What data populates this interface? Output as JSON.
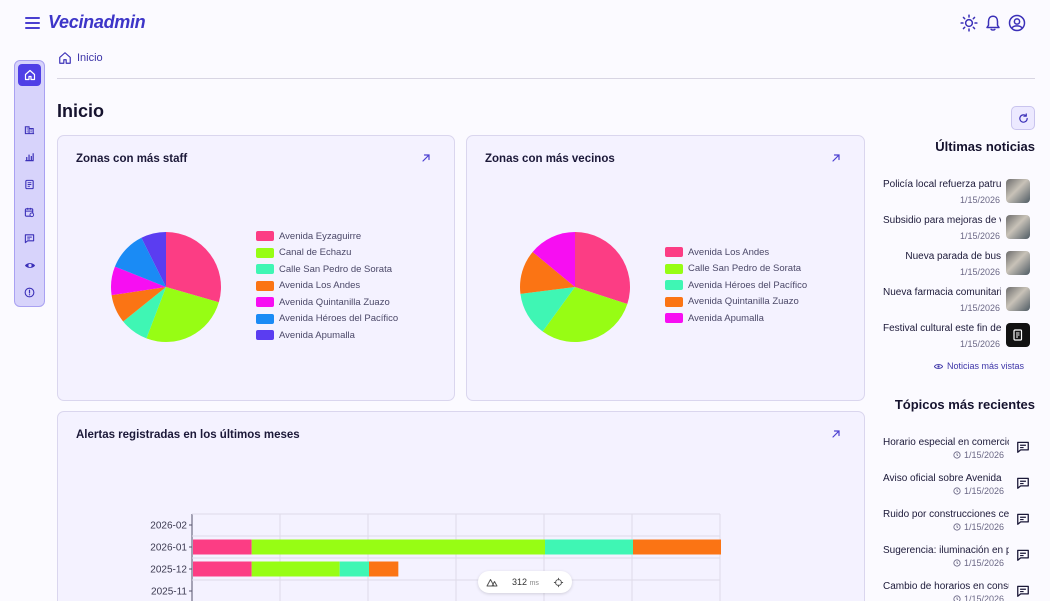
{
  "app": {
    "name": "Vecinadmin"
  },
  "breadcrumb": {
    "label": "Inicio"
  },
  "page": {
    "title": "Inicio"
  },
  "colors": {
    "accent": "#4f3fe6",
    "brand": "#3d35c8"
  },
  "cards": {
    "staff": {
      "title": "Zonas con más staff",
      "legend": [
        {
          "label": "Avenida Eyzaguirre",
          "color": "#fc3d84"
        },
        {
          "label": "Canal de Echazu",
          "color": "#97fd14"
        },
        {
          "label": "Calle San Pedro de Sorata",
          "color": "#3ff6b4"
        },
        {
          "label": "Avenida Los Andes",
          "color": "#fb7414"
        },
        {
          "label": "Avenida Quintanilla Zuazo",
          "color": "#f70ef2"
        },
        {
          "label": "Avenida Héroes del Pacífico",
          "color": "#1a8bf5"
        },
        {
          "label": "Avenida Apumalla",
          "color": "#5b3df1"
        }
      ]
    },
    "vecinos": {
      "title": "Zonas con más vecinos",
      "legend": [
        {
          "label": "Avenida Los Andes",
          "color": "#fc3d84"
        },
        {
          "label": "Calle San Pedro de Sorata",
          "color": "#97fd14"
        },
        {
          "label": "Avenida Héroes del Pacífico",
          "color": "#3ff6b4"
        },
        {
          "label": "Avenida Quintanilla Zuazo",
          "color": "#fb7414"
        },
        {
          "label": "Avenida Apumalla",
          "color": "#f70ef2"
        }
      ]
    },
    "alertas": {
      "title": "Alertas registradas en los últimos meses"
    }
  },
  "chart_data": [
    {
      "type": "pie",
      "labels": [
        "Avenida Eyzaguirre",
        "Canal de Echazu",
        "Calle San Pedro de Sorata",
        "Avenida Los Andes",
        "Avenida Quintanilla Zuazo",
        "Avenida Héroes del Pacífico",
        "Avenida Apumalla"
      ],
      "values": [
        28,
        25,
        8,
        8,
        8,
        11,
        7
      ],
      "colors": [
        "#fc3d84",
        "#97fd14",
        "#3ff6b4",
        "#fb7414",
        "#f70ef2",
        "#1a8bf5",
        "#5b3df1"
      ]
    },
    {
      "type": "pie",
      "labels": [
        "Avenida Los Andes",
        "Calle San Pedro de Sorata",
        "Avenida Héroes del Pacífico",
        "Avenida Quintanilla Zuazo",
        "Avenida Apumalla"
      ],
      "values": [
        30,
        30,
        13,
        13,
        14
      ],
      "colors": [
        "#fc3d84",
        "#97fd14",
        "#3ff6b4",
        "#fb7414",
        "#f70ef2"
      ]
    },
    {
      "type": "bar",
      "orientation": "horizontal",
      "stacked": true,
      "categories": [
        "2026-02",
        "2026-01",
        "2025-12",
        "2025-11"
      ],
      "series": [
        {
          "values": [
            0,
            2,
            2,
            0
          ],
          "color": "#fc3d84"
        },
        {
          "values": [
            0,
            10,
            3,
            0
          ],
          "color": "#97fd14"
        },
        {
          "values": [
            0,
            3,
            1,
            0
          ],
          "color": "#3ff6b4"
        },
        {
          "values": [
            0,
            3,
            1,
            0
          ],
          "color": "#fb7414"
        }
      ],
      "xlim": [
        0,
        18
      ],
      "grid": true
    }
  ],
  "news": {
    "title": "Últimas noticias",
    "items": [
      {
        "title": "Policía local refuerza patrullaje",
        "date": "1/15/2026"
      },
      {
        "title": "Subsidio para mejoras de viviendas",
        "date": "1/15/2026"
      },
      {
        "title": "Nueva parada de bus",
        "date": "1/15/2026"
      },
      {
        "title": "Nueva farmacia comunitaria",
        "date": "1/15/2026"
      },
      {
        "title": "Festival cultural este fin de semana",
        "date": "1/15/2026"
      }
    ],
    "more_label": "Noticias más vistas"
  },
  "topics": {
    "title": "Tópicos más recientes",
    "items": [
      {
        "title": "Horario especial en comercios",
        "date": "1/15/2026"
      },
      {
        "title": "Aviso oficial sobre Avenida",
        "date": "1/15/2026"
      },
      {
        "title": "Ruido por construcciones cercanas",
        "date": "1/15/2026"
      },
      {
        "title": "Sugerencia: iluminación en plaza",
        "date": "1/15/2026"
      },
      {
        "title": "Cambio de horarios en consultorio",
        "date": "1/15/2026"
      }
    ]
  },
  "devtools": {
    "render_time": "312",
    "unit": "ms"
  }
}
